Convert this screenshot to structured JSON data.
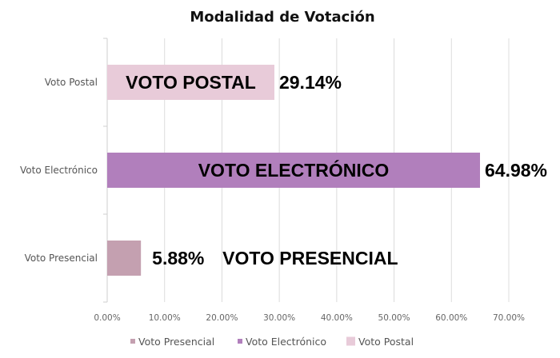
{
  "chart_data": {
    "type": "bar",
    "orientation": "horizontal",
    "title": "Modalidad de Votación",
    "categories": [
      "Voto Presencial",
      "Voto Electrónico",
      "Voto Postal"
    ],
    "values": [
      5.88,
      64.98,
      29.14
    ],
    "value_labels": [
      "5.88%",
      "64.98%",
      "29.14%"
    ],
    "bar_annotations": [
      "VOTO PRESENCIAL",
      "VOTO ELECTRÓNICO",
      "VOTO POSTAL"
    ],
    "colors": [
      "#c4a0b0",
      "#b17fbc",
      "#e8cbd9"
    ],
    "xlim": [
      0,
      70
    ],
    "xticks": [
      "0.00%",
      "10.00%",
      "20.00%",
      "30.00%",
      "40.00%",
      "50.00%",
      "60.00%",
      "70.00%"
    ],
    "xlabel": "",
    "ylabel": "",
    "grid": true,
    "legend": {
      "placement": "bottom",
      "entries": [
        "Voto Presencial",
        "Voto Electrónico",
        "Voto Postal"
      ]
    }
  }
}
